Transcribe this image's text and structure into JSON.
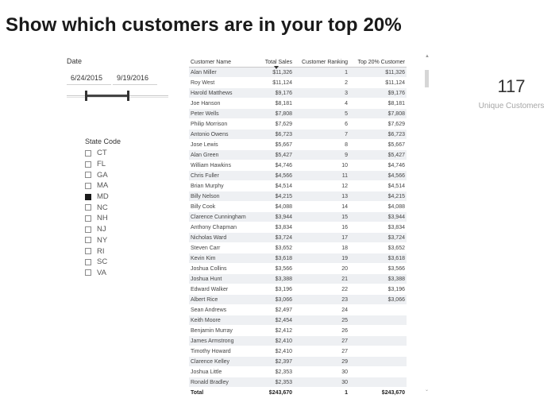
{
  "title": "Show which customers are in your top 20%",
  "date_slicer": {
    "label": "Date",
    "start": "6/24/2015",
    "end": "9/19/2016",
    "range_fraction": [
      0.18,
      0.59
    ]
  },
  "state_slicer": {
    "label": "State Code",
    "items": [
      {
        "code": "CT",
        "checked": false
      },
      {
        "code": "FL",
        "checked": false
      },
      {
        "code": "GA",
        "checked": false
      },
      {
        "code": "MA",
        "checked": false
      },
      {
        "code": "MD",
        "checked": true
      },
      {
        "code": "NC",
        "checked": false
      },
      {
        "code": "NH",
        "checked": false
      },
      {
        "code": "NJ",
        "checked": false
      },
      {
        "code": "NY",
        "checked": false
      },
      {
        "code": "RI",
        "checked": false
      },
      {
        "code": "SC",
        "checked": false
      },
      {
        "code": "VA",
        "checked": false
      }
    ]
  },
  "table": {
    "columns": [
      "Customer Name",
      "Total Sales",
      "Customer Ranking",
      "Top 20% Customer"
    ],
    "rows": [
      [
        "Alan Miller",
        "$11,326",
        "1",
        "$11,326"
      ],
      [
        "Roy West",
        "$11,124",
        "2",
        "$11,124"
      ],
      [
        "Harold Matthews",
        "$9,176",
        "3",
        "$9,176"
      ],
      [
        "Joe Hanson",
        "$8,181",
        "4",
        "$8,181"
      ],
      [
        "Peter Wells",
        "$7,808",
        "5",
        "$7,808"
      ],
      [
        "Philip Morrison",
        "$7,629",
        "6",
        "$7,629"
      ],
      [
        "Antonio Owens",
        "$6,723",
        "7",
        "$6,723"
      ],
      [
        "Jose Lewis",
        "$5,667",
        "8",
        "$5,667"
      ],
      [
        "Alan Green",
        "$5,427",
        "9",
        "$5,427"
      ],
      [
        "William Hawkins",
        "$4,746",
        "10",
        "$4,746"
      ],
      [
        "Chris Fuller",
        "$4,566",
        "11",
        "$4,566"
      ],
      [
        "Brian Murphy",
        "$4,514",
        "12",
        "$4,514"
      ],
      [
        "Billy Nelson",
        "$4,215",
        "13",
        "$4,215"
      ],
      [
        "Billy Cook",
        "$4,088",
        "14",
        "$4,088"
      ],
      [
        "Clarence Cunningham",
        "$3,944",
        "15",
        "$3,944"
      ],
      [
        "Anthony Chapman",
        "$3,834",
        "16",
        "$3,834"
      ],
      [
        "Nicholas Ward",
        "$3,724",
        "17",
        "$3,724"
      ],
      [
        "Steven Carr",
        "$3,652",
        "18",
        "$3,652"
      ],
      [
        "Kevin Kim",
        "$3,618",
        "19",
        "$3,618"
      ],
      [
        "Joshua Collins",
        "$3,566",
        "20",
        "$3,566"
      ],
      [
        "Joshua Hunt",
        "$3,388",
        "21",
        "$3,388"
      ],
      [
        "Edward Walker",
        "$3,196",
        "22",
        "$3,196"
      ],
      [
        "Albert Rice",
        "$3,066",
        "23",
        "$3,066"
      ],
      [
        "Sean Andrews",
        "$2,497",
        "24",
        ""
      ],
      [
        "Keith Moore",
        "$2,454",
        "25",
        ""
      ],
      [
        "Benjamin Murray",
        "$2,412",
        "26",
        ""
      ],
      [
        "James Armstrong",
        "$2,410",
        "27",
        ""
      ],
      [
        "Timothy Howard",
        "$2,410",
        "27",
        ""
      ],
      [
        "Clarence Kelley",
        "$2,397",
        "29",
        ""
      ],
      [
        "Joshua Little",
        "$2,353",
        "30",
        ""
      ],
      [
        "Ronald Bradley",
        "$2,353",
        "30",
        ""
      ]
    ],
    "total": [
      "Total",
      "$243,670",
      "1",
      "$243,670"
    ],
    "scroll_up_icon": "chevron-up-icon",
    "scroll_down_icon": "chevron-down-icon"
  },
  "card": {
    "value": "117",
    "label": "Unique Customers"
  }
}
